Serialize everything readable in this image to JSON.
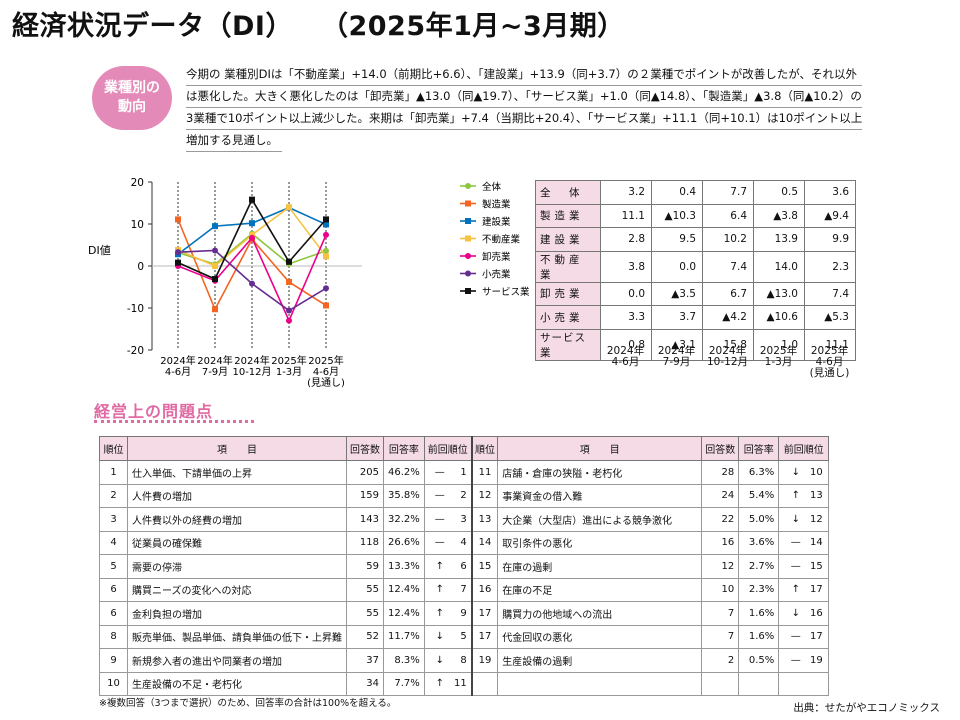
{
  "page": {
    "title_main": "経済状況データ（DI）",
    "title_period": "（2025年1月~3月期）"
  },
  "badge": {
    "line1": "業種別の",
    "line2": "動向"
  },
  "intro": {
    "lines": [
      "今期の 業種別DIは「不動産業」+14.0（前期比+6.6）、「建設業」+13.9（同+3.7）の２業種でポイントが改善したが、それ以外",
      "は悪化した。大きく悪化したのは「卸売業」▲13.0（同▲19.7）、「サービス業」+1.0（同▲14.8）、「製造業」▲3.8（同▲10.2）の",
      "3業種で10ポイント以上減少した。来期は「卸売業」+7.4（当期比+20.4）、「サービス業」+11.1（同+10.1）は10ポイント以上",
      "増加する見通し。"
    ]
  },
  "chart_data": {
    "type": "line",
    "ylabel": "DI値",
    "ylim": [
      -20,
      20
    ],
    "yticks": [
      20,
      10,
      0,
      -10,
      -20
    ],
    "categories": [
      "2024年\n4-6月",
      "2024年\n7-9月",
      "2024年\n10-12月",
      "2025年\n1-3月",
      "2025年\n4-6月\n(見通し)"
    ],
    "series": [
      {
        "name": "全体",
        "color": "#8dc63f",
        "marker": "circle",
        "values": [
          3.2,
          0.4,
          7.7,
          0.5,
          3.6
        ]
      },
      {
        "name": "製造業",
        "color": "#f26522",
        "marker": "square",
        "values": [
          11.1,
          -10.3,
          6.4,
          -3.8,
          -9.4
        ]
      },
      {
        "name": "建設業",
        "color": "#0072bc",
        "marker": "square",
        "values": [
          2.8,
          9.5,
          10.2,
          13.9,
          9.9
        ]
      },
      {
        "name": "不動産業",
        "color": "#f7c242",
        "marker": "square",
        "values": [
          3.8,
          0.0,
          7.4,
          14.0,
          2.3
        ]
      },
      {
        "name": "卸売業",
        "color": "#ec008c",
        "marker": "circle",
        "values": [
          0.0,
          -3.5,
          6.7,
          -13.0,
          7.4
        ]
      },
      {
        "name": "小売業",
        "color": "#662d91",
        "marker": "circle",
        "values": [
          3.3,
          3.7,
          -4.2,
          -10.6,
          -5.3
        ]
      },
      {
        "name": "サービス業",
        "color": "#111111",
        "marker": "square",
        "values": [
          0.8,
          -3.1,
          15.8,
          1.0,
          11.1
        ]
      }
    ]
  },
  "di_table": {
    "rows": [
      {
        "label": "全　体",
        "values": [
          "3.2",
          "0.4",
          "7.7",
          "0.5",
          "3.6"
        ]
      },
      {
        "label": "製造業",
        "values": [
          "11.1",
          "▲10.3",
          "6.4",
          "▲3.8",
          "▲9.4"
        ]
      },
      {
        "label": "建設業",
        "values": [
          "2.8",
          "9.5",
          "10.2",
          "13.9",
          "9.9"
        ]
      },
      {
        "label": "不動産業",
        "values": [
          "3.8",
          "0.0",
          "7.4",
          "14.0",
          "2.3"
        ]
      },
      {
        "label": "卸売業",
        "values": [
          "0.0",
          "▲3.5",
          "6.7",
          "▲13.0",
          "7.4"
        ]
      },
      {
        "label": "小売業",
        "values": [
          "3.3",
          "3.7",
          "▲4.2",
          "▲10.6",
          "▲5.3"
        ]
      },
      {
        "label": "サービス業",
        "values": [
          "0.8",
          "▲3.1",
          "15.8",
          "1.0",
          "11.1"
        ]
      }
    ],
    "headers": [
      "2024年\n4-6月",
      "2024年\n7-9月",
      "2024年\n10-12月",
      "2025年\n1-3月",
      "2025年\n4-6月\n(見通し)"
    ]
  },
  "problems": {
    "section_title": "経営上の問題点",
    "headers": [
      "順位",
      "項　　目",
      "回答数",
      "回答率",
      "前回順位"
    ],
    "left": [
      {
        "rank": "1",
        "item": "仕入単価、下請単価の上昇",
        "count": "205",
        "rate": "46.2%",
        "arrow": "—",
        "prev": "1"
      },
      {
        "rank": "2",
        "item": "人件費の増加",
        "count": "159",
        "rate": "35.8%",
        "arrow": "—",
        "prev": "2"
      },
      {
        "rank": "3",
        "item": "人件費以外の経費の増加",
        "count": "143",
        "rate": "32.2%",
        "arrow": "—",
        "prev": "3"
      },
      {
        "rank": "4",
        "item": "従業員の確保難",
        "count": "118",
        "rate": "26.6%",
        "arrow": "—",
        "prev": "4"
      },
      {
        "rank": "5",
        "item": "需要の停滞",
        "count": "59",
        "rate": "13.3%",
        "arrow": "↑",
        "prev": "6"
      },
      {
        "rank": "6",
        "item": "購買ニーズの変化への対応",
        "count": "55",
        "rate": "12.4%",
        "arrow": "↑",
        "prev": "7"
      },
      {
        "rank": "6",
        "item": "金利負担の増加",
        "count": "55",
        "rate": "12.4%",
        "arrow": "↑",
        "prev": "9"
      },
      {
        "rank": "8",
        "item": "販売単価、製品単価、請負単価の低下・上昇難",
        "count": "52",
        "rate": "11.7%",
        "arrow": "↓",
        "prev": "5"
      },
      {
        "rank": "9",
        "item": "新規参入者の進出や同業者の増加",
        "count": "37",
        "rate": "8.3%",
        "arrow": "↓",
        "prev": "8"
      },
      {
        "rank": "10",
        "item": "生産設備の不足・老朽化",
        "count": "34",
        "rate": "7.7%",
        "arrow": "↑",
        "prev": "11"
      }
    ],
    "right": [
      {
        "rank": "11",
        "item": "店舗・倉庫の狭隘・老朽化",
        "count": "28",
        "rate": "6.3%",
        "arrow": "↓",
        "prev": "10"
      },
      {
        "rank": "12",
        "item": "事業資金の借入難",
        "count": "24",
        "rate": "5.4%",
        "arrow": "↑",
        "prev": "13"
      },
      {
        "rank": "13",
        "item": "大企業（大型店）進出による競争激化",
        "count": "22",
        "rate": "5.0%",
        "arrow": "↓",
        "prev": "12"
      },
      {
        "rank": "14",
        "item": "取引条件の悪化",
        "count": "16",
        "rate": "3.6%",
        "arrow": "—",
        "prev": "14"
      },
      {
        "rank": "15",
        "item": "在庫の過剰",
        "count": "12",
        "rate": "2.7%",
        "arrow": "—",
        "prev": "15"
      },
      {
        "rank": "16",
        "item": "在庫の不足",
        "count": "10",
        "rate": "2.3%",
        "arrow": "↑",
        "prev": "17"
      },
      {
        "rank": "17",
        "item": "購買力の他地域への流出",
        "count": "7",
        "rate": "1.6%",
        "arrow": "↓",
        "prev": "16"
      },
      {
        "rank": "17",
        "item": "代金回収の悪化",
        "count": "7",
        "rate": "1.6%",
        "arrow": "—",
        "prev": "17"
      },
      {
        "rank": "19",
        "item": "生産設備の過剰",
        "count": "2",
        "rate": "0.5%",
        "arrow": "—",
        "prev": "19"
      },
      {
        "rank": "",
        "item": "",
        "count": "",
        "rate": "",
        "arrow": "",
        "prev": ""
      }
    ]
  },
  "footnote": "※複数回答（3つまで選択）のため、回答率の合計は100%を超える。",
  "source": "出典：せたがやエコノミックス"
}
